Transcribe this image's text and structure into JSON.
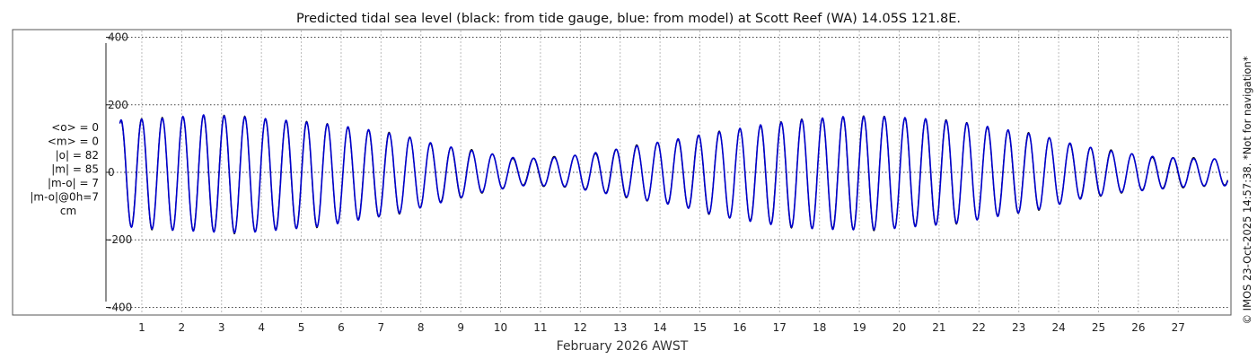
{
  "chart_data": {
    "type": "line",
    "title": "Predicted tidal sea level (black: from tide gauge, blue: from model) at Scott Reef (WA) 14.05S 121.8E.",
    "xlabel": "February 2026 AWST",
    "ylabel": "",
    "xlim": [
      0.1,
      28.3
    ],
    "ylim": [
      -420,
      420
    ],
    "x_ticks": [
      1,
      2,
      3,
      4,
      5,
      6,
      7,
      8,
      9,
      10,
      11,
      12,
      13,
      14,
      15,
      16,
      17,
      18,
      19,
      20,
      21,
      22,
      23,
      24,
      25,
      26,
      27
    ],
    "x_tick_labels": [
      "1",
      "2",
      "3",
      "4",
      "5",
      "6",
      "7",
      "8",
      "9",
      "10",
      "11",
      "12",
      "13",
      "14",
      "15",
      "16",
      "17",
      "18",
      "19",
      "20",
      "21",
      "22",
      "23",
      "24",
      "25",
      "26",
      "27"
    ],
    "y_ticks": [
      400,
      200,
      0,
      -200,
      -400
    ],
    "y_tick_labels": [
      "400",
      "200",
      "0",
      "-200",
      "-400"
    ],
    "grid": true,
    "series": [
      {
        "name": "",
        "color": "#000000",
        "x": [
          0.5,
          1.5,
          2.5,
          3.5,
          4.5,
          5.5,
          6.5,
          7.5,
          8.5,
          9.5,
          10.5,
          11.5,
          12.5,
          13.5,
          14.5,
          15.5,
          16.5,
          17.5,
          18.5,
          19.5,
          20.5,
          21.5,
          22.5,
          23.5,
          24.5,
          25.5,
          26.5,
          27.5
        ],
        "peak": [
          155,
          160,
          170,
          165,
          155,
          145,
          130,
          110,
          80,
          60,
          40,
          45,
          60,
          80,
          100,
          120,
          140,
          155,
          165,
          165,
          160,
          150,
          130,
          110,
          80,
          60,
          45,
          40
        ],
        "trough": [
          -160,
          -170,
          -175,
          -180,
          -170,
          -160,
          -140,
          -120,
          -90,
          -60,
          -40,
          -40,
          -60,
          -80,
          -100,
          -130,
          -150,
          -165,
          -170,
          -170,
          -160,
          -150,
          -130,
          -110,
          -80,
          -60,
          -50,
          -40
        ]
      },
      {
        "name": "",
        "color": "#0000cc",
        "x": [
          0.5,
          1.5,
          2.5,
          3.5,
          4.5,
          5.5,
          6.5,
          7.5,
          8.5,
          9.5,
          10.5,
          11.5,
          12.5,
          13.5,
          14.5,
          15.5,
          16.5,
          17.5,
          18.5,
          19.5,
          20.5,
          21.5,
          22.5,
          23.5,
          24.5,
          25.5,
          26.5,
          27.5
        ],
        "peak": [
          155,
          160,
          170,
          165,
          155,
          145,
          130,
          110,
          80,
          60,
          40,
          45,
          60,
          80,
          100,
          120,
          140,
          155,
          165,
          165,
          160,
          150,
          130,
          110,
          80,
          60,
          45,
          40
        ],
        "trough": [
          -160,
          -170,
          -175,
          -180,
          -170,
          -160,
          -140,
          -120,
          -90,
          -60,
          -40,
          -40,
          -60,
          -80,
          -100,
          -130,
          -150,
          -165,
          -170,
          -170,
          -160,
          -150,
          -130,
          -110,
          -80,
          -60,
          -50,
          -40
        ]
      }
    ],
    "stats": [
      "<o> = 0",
      "<m> = 0",
      "|o| = 82",
      "|m| = 85",
      "|m-o| = 7",
      "|m-o|@0h=7",
      "cm"
    ],
    "side_note": "© IMOS 23-Oct-2025 14:57:38. *Not for navigation*"
  }
}
